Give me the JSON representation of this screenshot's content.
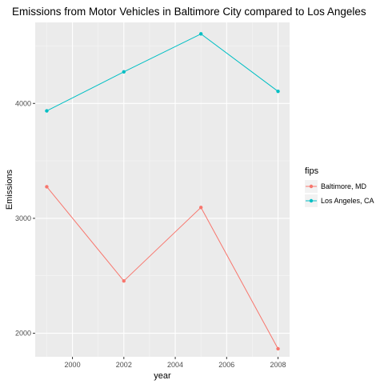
{
  "chart_data": {
    "type": "line",
    "title": "Emissions from Motor Vehicles in Baltimore City compared to Los Angeles",
    "xlabel": "year",
    "ylabel": "Emissions",
    "x": [
      1999,
      2002,
      2005,
      2008
    ],
    "x_ticks": [
      2000,
      2002,
      2004,
      2006,
      2008
    ],
    "y_ticks": [
      2000,
      3000,
      4000
    ],
    "xlim": [
      1998.55,
      2008.45
    ],
    "ylim": [
      1795,
      4705
    ],
    "grid": true,
    "legend": {
      "title": "fips",
      "placement": "right"
    },
    "series": [
      {
        "name": "Baltimore, MD",
        "color": "#F8766D",
        "values": [
          3275,
          2455,
          3095,
          1865
        ]
      },
      {
        "name": "Los Angeles, CA",
        "color": "#00BFC4",
        "values": [
          3935,
          4275,
          4605,
          4105
        ]
      }
    ]
  }
}
